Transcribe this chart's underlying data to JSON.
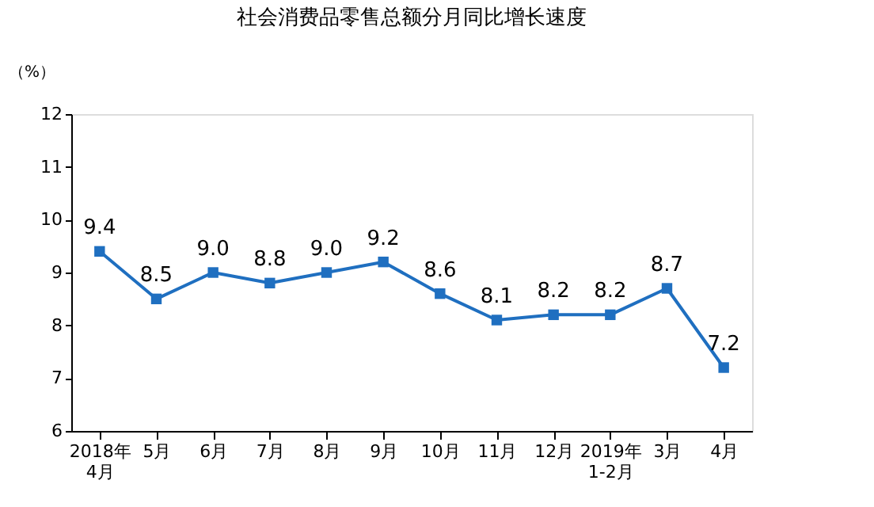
{
  "chart_data": {
    "type": "line",
    "title": "社会消费品零售总额分月同比增长速度",
    "ylabel": "（%）",
    "categories": [
      "2018年\n4月",
      "5月",
      "6月",
      "7月",
      "8月",
      "9月",
      "10月",
      "11月",
      "12月",
      "2019年\n1-2月",
      "3月",
      "4月"
    ],
    "series": [
      {
        "color": "#1f6fc0",
        "values": [
          9.4,
          8.5,
          9.0,
          8.8,
          9.0,
          9.2,
          8.6,
          8.1,
          8.2,
          8.2,
          8.7,
          7.2
        ],
        "value_labels": [
          "9.4",
          "8.5",
          "9.0",
          "8.8",
          "9.0",
          "9.2",
          "8.6",
          "8.1",
          "8.2",
          "8.2",
          "8.7",
          "7.2"
        ]
      }
    ],
    "ylim": [
      6,
      12
    ],
    "yticks": [
      6,
      7,
      8,
      9,
      10,
      11,
      12
    ],
    "grid": false,
    "marker": "square",
    "line_style": "solid"
  }
}
